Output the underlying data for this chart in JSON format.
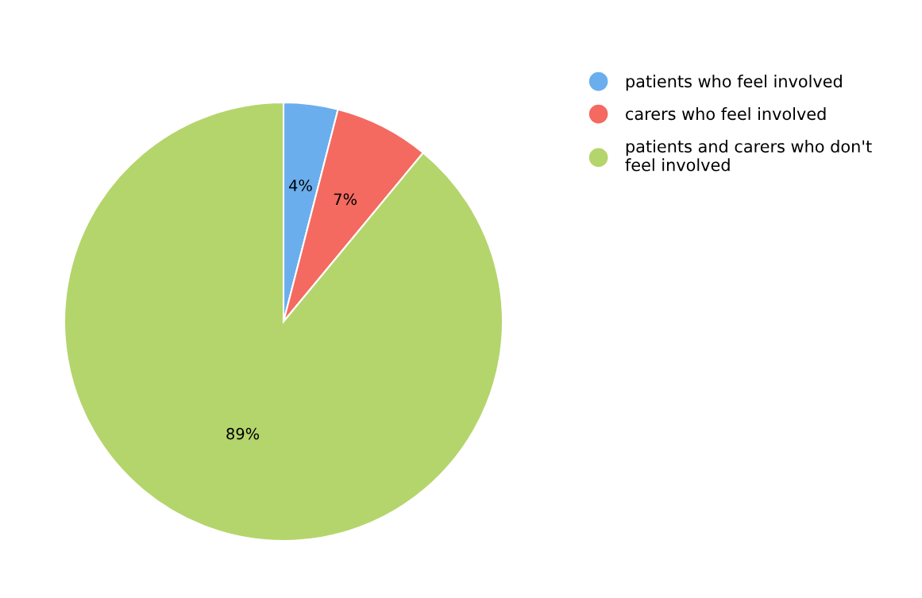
{
  "chart_data": {
    "type": "pie",
    "categories": [
      "patients who feel involved",
      "carers who feel involved",
      "patients and carers who don't\nfeel involved"
    ],
    "values": [
      4,
      7,
      89
    ],
    "colors": [
      "#6aaeee",
      "#f46a60",
      "#b4d56c"
    ],
    "value_labels": [
      "4%",
      "7%",
      "89%"
    ],
    "legend": "right"
  }
}
